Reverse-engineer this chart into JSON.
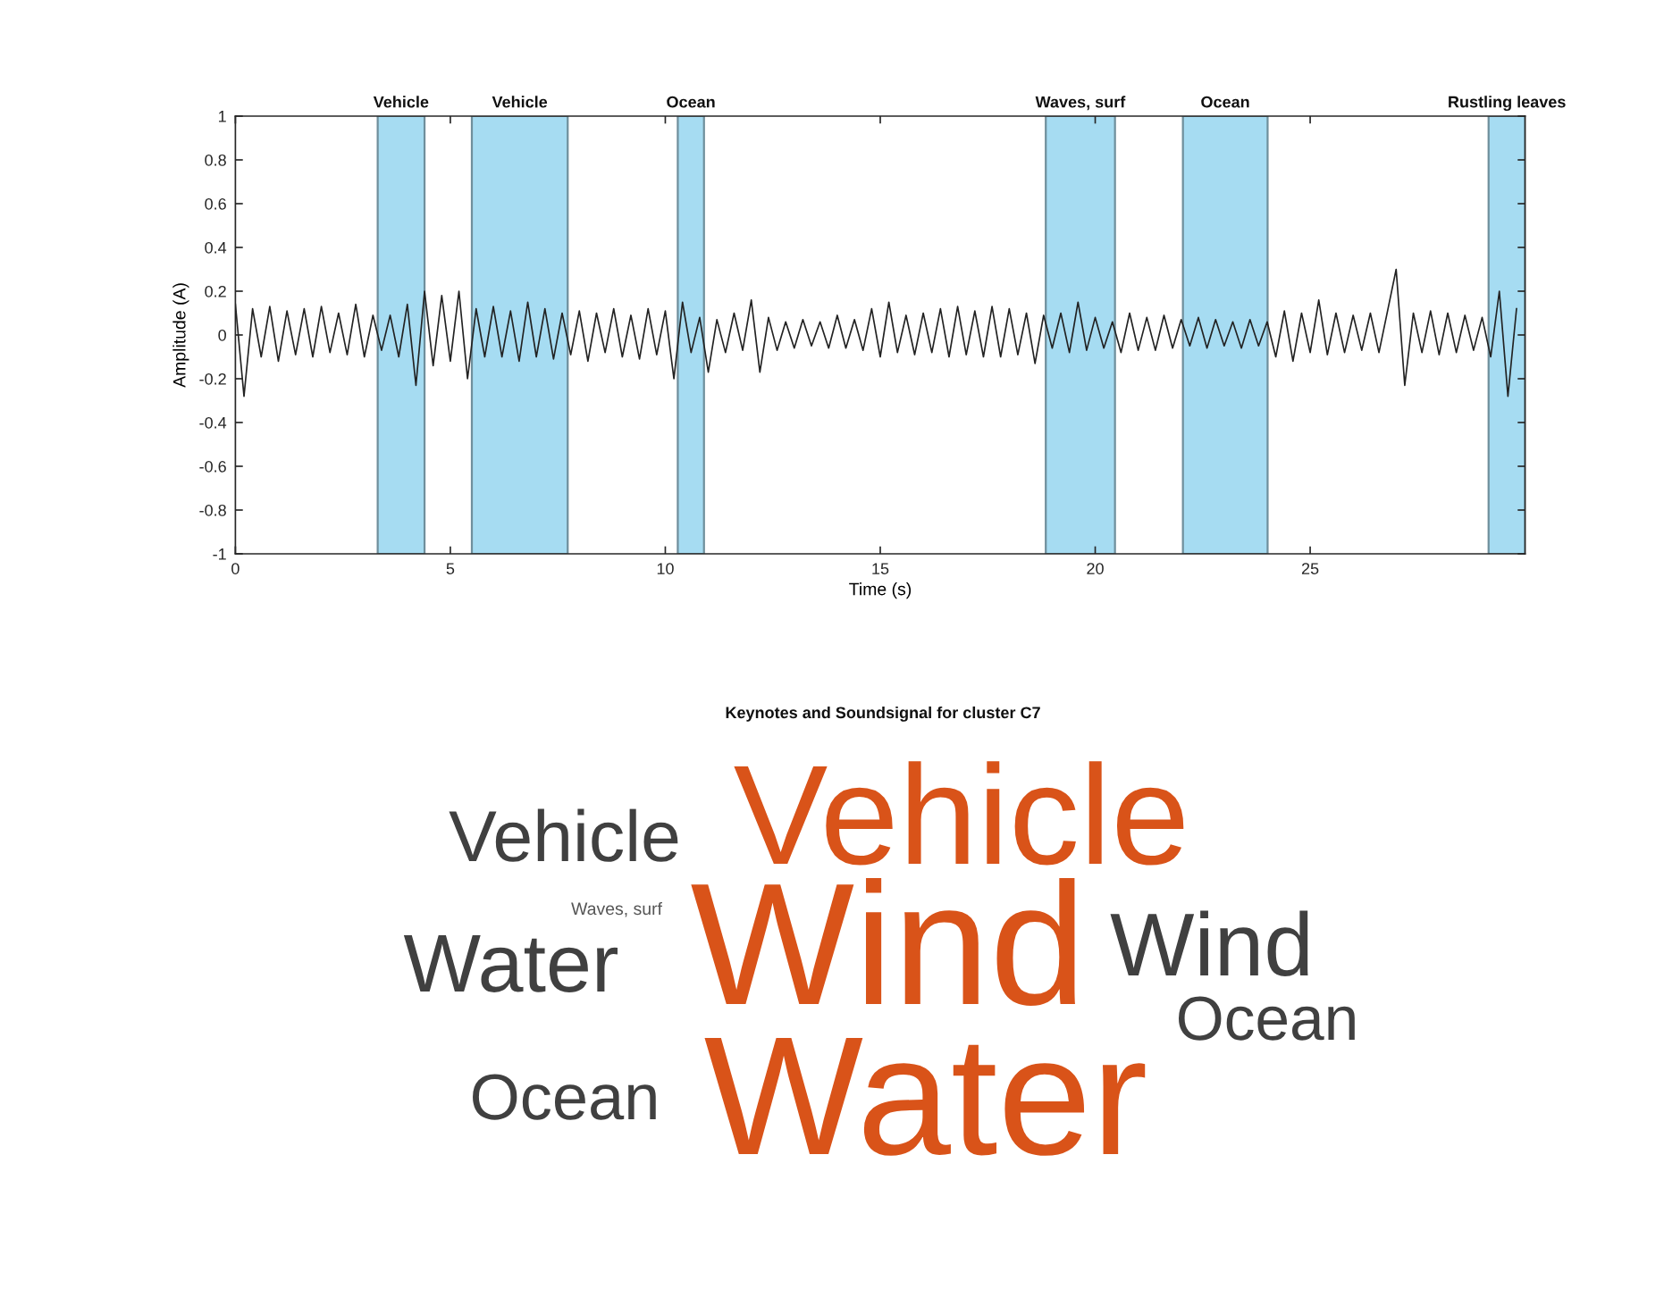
{
  "chart_data": [
    {
      "type": "line",
      "xlabel": "Time (s)",
      "ylabel": "Amplitude (A)",
      "x": [
        0.0,
        0.2,
        0.4,
        0.6,
        0.8,
        1.0,
        1.2,
        1.4,
        1.6,
        1.8,
        2.0,
        2.2,
        2.4,
        2.6,
        2.8,
        3.0,
        3.2,
        3.4,
        3.6,
        3.8,
        4.0,
        4.2,
        4.4,
        4.6,
        4.8,
        5.0,
        5.2,
        5.4,
        5.6,
        5.8,
        6.0,
        6.2,
        6.4,
        6.6,
        6.8,
        7.0,
        7.2,
        7.4,
        7.6,
        7.8,
        8.0,
        8.2,
        8.4,
        8.6,
        8.8,
        9.0,
        9.2,
        9.4,
        9.6,
        9.8,
        10.0,
        10.2,
        10.4,
        10.6,
        10.8,
        11.0,
        11.2,
        11.4,
        11.6,
        11.8,
        12.0,
        12.2,
        12.4,
        12.6,
        12.8,
        13.0,
        13.2,
        13.4,
        13.6,
        13.8,
        14.0,
        14.2,
        14.4,
        14.6,
        14.8,
        15.0,
        15.2,
        15.4,
        15.6,
        15.8,
        16.0,
        16.2,
        16.4,
        16.6,
        16.8,
        17.0,
        17.2,
        17.4,
        17.6,
        17.8,
        18.0,
        18.2,
        18.4,
        18.6,
        18.8,
        19.0,
        19.2,
        19.4,
        19.6,
        19.8,
        20.0,
        20.2,
        20.4,
        20.6,
        20.8,
        21.0,
        21.2,
        21.4,
        21.6,
        21.8,
        22.0,
        22.2,
        22.4,
        22.6,
        22.8,
        23.0,
        23.2,
        23.4,
        23.6,
        23.8,
        24.0,
        24.2,
        24.4,
        24.6,
        24.8,
        25.0,
        25.2,
        25.4,
        25.6,
        25.8,
        26.0,
        26.2,
        26.4,
        26.6,
        26.8,
        27.0,
        27.2,
        27.4,
        27.6,
        27.8,
        28.0,
        28.2,
        28.4,
        28.6,
        28.8,
        29.0,
        29.2,
        29.4,
        29.6,
        29.8
      ],
      "series": [
        {
          "color": "#222222",
          "values": [
            0.14,
            -0.28,
            0.12,
            -0.1,
            0.13,
            -0.12,
            0.11,
            -0.09,
            0.12,
            -0.1,
            0.13,
            -0.08,
            0.1,
            -0.09,
            0.14,
            -0.1,
            0.09,
            -0.07,
            0.09,
            -0.1,
            0.14,
            -0.23,
            0.2,
            -0.14,
            0.18,
            -0.12,
            0.2,
            -0.2,
            0.12,
            -0.1,
            0.13,
            -0.1,
            0.11,
            -0.12,
            0.15,
            -0.1,
            0.12,
            -0.11,
            0.1,
            -0.09,
            0.11,
            -0.12,
            0.1,
            -0.08,
            0.12,
            -0.1,
            0.09,
            -0.11,
            0.12,
            -0.09,
            0.11,
            -0.2,
            0.15,
            -0.08,
            0.08,
            -0.17,
            0.07,
            -0.08,
            0.1,
            -0.07,
            0.16,
            -0.17,
            0.08,
            -0.07,
            0.06,
            -0.06,
            0.07,
            -0.05,
            0.06,
            -0.06,
            0.09,
            -0.06,
            0.07,
            -0.07,
            0.12,
            -0.1,
            0.15,
            -0.08,
            0.09,
            -0.09,
            0.1,
            -0.08,
            0.12,
            -0.1,
            0.13,
            -0.09,
            0.11,
            -0.1,
            0.13,
            -0.1,
            0.12,
            -0.09,
            0.1,
            -0.13,
            0.09,
            -0.06,
            0.1,
            -0.08,
            0.15,
            -0.07,
            0.08,
            -0.06,
            0.06,
            -0.08,
            0.1,
            -0.07,
            0.08,
            -0.07,
            0.09,
            -0.06,
            0.07,
            -0.05,
            0.08,
            -0.06,
            0.07,
            -0.05,
            0.06,
            -0.06,
            0.07,
            -0.05,
            0.06,
            -0.1,
            0.11,
            -0.12,
            0.1,
            -0.08,
            0.16,
            -0.09,
            0.1,
            -0.08,
            0.09,
            -0.07,
            0.1,
            -0.08,
            0.11,
            0.3,
            -0.23,
            0.1,
            -0.08,
            0.11,
            -0.09,
            0.1,
            -0.08,
            0.09,
            -0.07,
            0.08,
            -0.1,
            0.2,
            -0.28,
            0.12
          ]
        }
      ],
      "xlim": [
        0,
        30
      ],
      "ylim": [
        -1,
        1
      ],
      "xticks": [
        0,
        5,
        10,
        15,
        20,
        25
      ],
      "yticks": [
        -1,
        -0.8,
        -0.6,
        -0.4,
        -0.2,
        0,
        0.2,
        0.4,
        0.6,
        0.8,
        1
      ],
      "bands": [
        {
          "axis": "x",
          "from": 3.31,
          "to": 4.4,
          "label": "Vehicle",
          "color": "#a6dcf2"
        },
        {
          "axis": "x",
          "from": 5.5,
          "to": 7.73,
          "label": "Vehicle",
          "color": "#a6dcf2"
        },
        {
          "axis": "x",
          "from": 10.29,
          "to": 10.9,
          "label": "Ocean",
          "color": "#a6dcf2"
        },
        {
          "axis": "x",
          "from": 18.85,
          "to": 20.46,
          "label": "Waves, surf",
          "color": "#a6dcf2"
        },
        {
          "axis": "x",
          "from": 22.04,
          "to": 24.01,
          "label": "Ocean",
          "color": "#a6dcf2"
        },
        {
          "axis": "x",
          "from": 29.15,
          "to": 30,
          "label": "Rustling leaves",
          "color": "#a6dcf2"
        }
      ],
      "grid": false
    },
    {
      "type": "other",
      "title": "Keynotes and Soundsignal for cluster C7",
      "annotations": [
        "Vehicle",
        "Vehicle",
        "Waves, surf",
        "Water",
        "Wind",
        "Wind",
        "Ocean",
        "Ocean",
        "Water"
      ]
    }
  ]
}
